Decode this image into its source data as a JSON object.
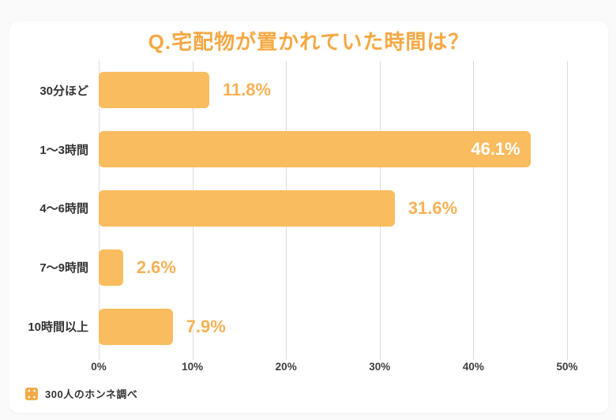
{
  "page": {
    "background_color": "#fafafa",
    "card_background_color": "#ffffff"
  },
  "chart_data": {
    "type": "bar",
    "orientation": "horizontal",
    "title": "Q.宅配物が置かれていた時間は？",
    "categories": [
      "30分ほど",
      "1〜3時間",
      "4〜6時間",
      "7〜9時間",
      "10時間以上"
    ],
    "values": [
      11.8,
      46.1,
      31.6,
      2.6,
      7.9
    ],
    "value_labels": [
      "11.8%",
      "46.1%",
      "31.6%",
      "2.6%",
      "7.9%"
    ],
    "value_label_inside": [
      false,
      true,
      false,
      false,
      false
    ],
    "xlim": [
      0,
      50
    ],
    "x_ticks": [
      {
        "label": "0%",
        "value": 0
      },
      {
        "label": "10%",
        "value": 10
      },
      {
        "label": "20%",
        "value": 20
      },
      {
        "label": "30%",
        "value": 30
      },
      {
        "label": "40%",
        "value": 40
      },
      {
        "label": "50%",
        "value": 50
      }
    ],
    "grid": "vertical",
    "legend": "none",
    "colors": {
      "bar": "#F9BC5E",
      "title": "#F6A843",
      "value_label": "#F8B156",
      "value_label_inside": "#FFFFFF",
      "gridline": "#DCDCDC",
      "category_label": "#333333",
      "tick_label": "#3D3D3D"
    }
  },
  "footer": {
    "source_label": "300人のホンネ調べ",
    "logo_color": "#F5A945"
  }
}
